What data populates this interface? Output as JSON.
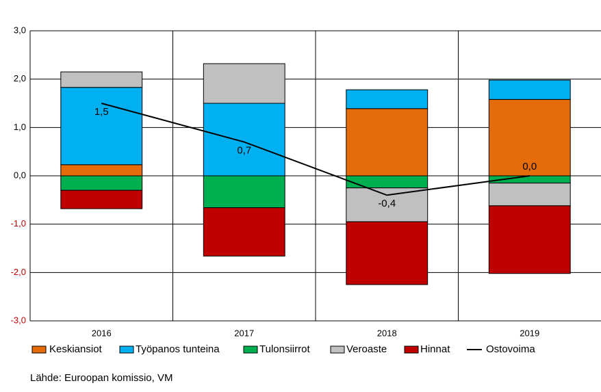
{
  "chart_data": {
    "type": "bar",
    "categories": [
      "2016",
      "2017",
      "2018",
      "2019"
    ],
    "series": [
      {
        "name": "Keskiansiot",
        "color": "#e46c0a",
        "values": [
          0.23,
          0,
          1.39,
          1.58
        ]
      },
      {
        "name": "Työpanos tunteina",
        "color": "#00b0f0",
        "values": [
          1.6,
          1.5,
          0.39,
          0.4
        ]
      },
      {
        "name": "Tulonsiirrot",
        "color": "#00b050",
        "values": [
          -0.3,
          -0.66,
          -0.25,
          -0.15
        ]
      },
      {
        "name": "Veroaste",
        "color": "#c0c0c0",
        "values": [
          0.32,
          0.82,
          -0.7,
          -0.47
        ]
      },
      {
        "name": "Hinnat",
        "color": "#c00000",
        "values": [
          -0.38,
          -1.0,
          -1.3,
          -1.4
        ]
      },
      {
        "name": "Ostovoima",
        "type": "line",
        "color": "#000000",
        "values": [
          1.5,
          0.7,
          -0.4,
          0.0
        ],
        "value_labels": [
          "1,5",
          "0,7",
          "-0,4",
          "0,0"
        ]
      }
    ],
    "ylim": [
      -3,
      3
    ],
    "yticks": [
      {
        "value": -3,
        "label": "-3,0"
      },
      {
        "value": -2,
        "label": "-2,0"
      },
      {
        "value": -1,
        "label": "-1,0"
      },
      {
        "value": 0,
        "label": "0,0"
      },
      {
        "value": 1,
        "label": "1,0"
      },
      {
        "value": 2,
        "label": "2,0"
      },
      {
        "value": 3,
        "label": "3,0"
      }
    ],
    "grid": true,
    "legend": "bottom",
    "source": "Lähde: Euroopan komissio, VM"
  }
}
